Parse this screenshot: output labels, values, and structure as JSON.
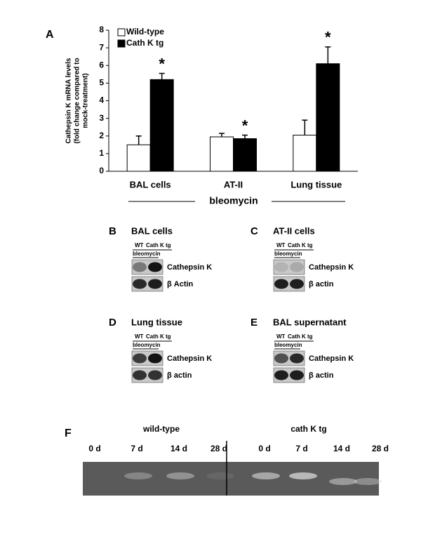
{
  "chart_data": {
    "type": "bar",
    "panel_label": "A",
    "ylabel": [
      "Cathepsin K mRNA levels",
      "(fold change compared to",
      "mock-treatment)"
    ],
    "xlabel": "bleomycin",
    "categories": [
      "BAL cells",
      "AT-II",
      "Lung tissue"
    ],
    "series": [
      {
        "name": "Wild-type",
        "color": "#ffffff",
        "values": [
          1.5,
          1.95,
          2.05
        ],
        "errors": [
          0.5,
          0.2,
          0.85
        ]
      },
      {
        "name": "Cath K tg",
        "color": "#000000",
        "values": [
          5.2,
          1.85,
          6.1
        ],
        "errors": [
          0.35,
          0.2,
          0.95
        ],
        "annotations": [
          "*",
          "*",
          "*"
        ]
      }
    ],
    "ylim": [
      0,
      8
    ],
    "yticks": [
      0,
      1,
      2,
      3,
      4,
      5,
      6,
      7,
      8
    ],
    "legend": "upper-left"
  },
  "blots": [
    {
      "letter": "B",
      "title": "BAL cells",
      "lanes": [
        "WT",
        "Cath K tg"
      ],
      "treatment": "bleomycin",
      "bands": [
        "Cathepsin K",
        "β Actin"
      ]
    },
    {
      "letter": "C",
      "title": "AT-II cells",
      "lanes": [
        "WT",
        "Cath K tg"
      ],
      "treatment": "bleomycin",
      "bands": [
        "Cathepsin K",
        "β actin"
      ]
    },
    {
      "letter": "D",
      "title": "Lung tissue",
      "lanes": [
        "WT",
        "Cath K tg"
      ],
      "treatment": "bleomycin",
      "bands": [
        "Cathepsin K",
        "β actin"
      ]
    },
    {
      "letter": "E",
      "title": "BAL supernatant",
      "lanes": [
        "WT",
        "Cath K tg"
      ],
      "treatment": "bleomycin",
      "bands": [
        "Cathepsin K",
        "β actin"
      ]
    }
  ],
  "gel": {
    "letter": "F",
    "groups": [
      "wild-type",
      "cath K tg"
    ],
    "lanes": [
      "0 d",
      "7 d",
      "14 d",
      "28 d",
      "0 d",
      "7 d",
      "14 d",
      "28 d"
    ]
  }
}
